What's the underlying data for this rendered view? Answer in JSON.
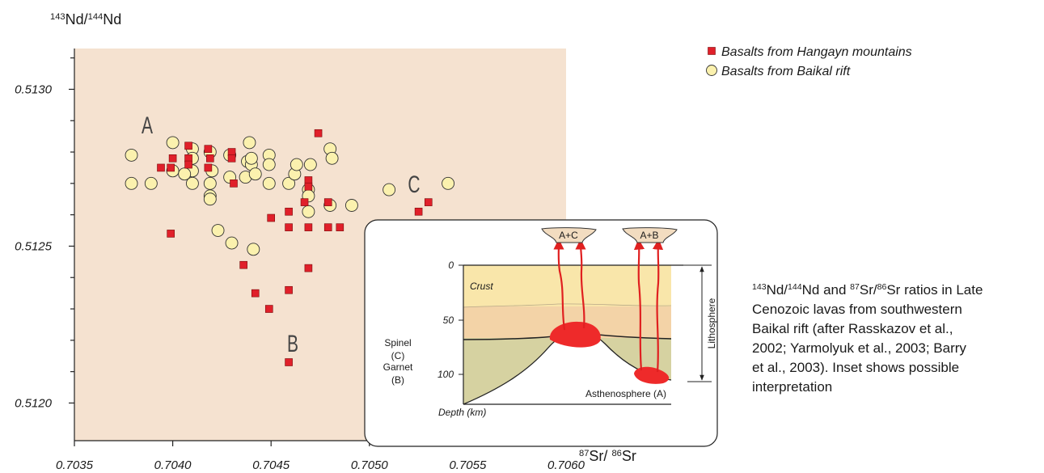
{
  "chart_data": {
    "type": "scatter",
    "ylabel": [
      {
        "text": "143",
        "sup": true
      },
      {
        "text": "Nd/"
      },
      {
        "text": "144",
        "sup": true
      },
      {
        "text": "Nd"
      }
    ],
    "xlabel": [
      {
        "text": "87",
        "sup": true
      },
      {
        "text": "Sr/ "
      },
      {
        "text": "86",
        "sup": true
      },
      {
        "text": "Sr"
      }
    ],
    "xlim": [
      0.7035,
      0.706
    ],
    "ylim": [
      0.51188,
      0.51313
    ],
    "xticks": [
      {
        "value": 0.7035,
        "label": "0.7035"
      },
      {
        "value": 0.704,
        "label": "0.7040"
      },
      {
        "value": 0.7045,
        "label": "0.7045"
      },
      {
        "value": 0.705,
        "label": "0.7050"
      },
      {
        "value": 0.7055,
        "label": "0.7055"
      },
      {
        "value": 0.706,
        "label": "0.7060"
      }
    ],
    "yticks": [
      {
        "value": 0.512,
        "label": "0.5120"
      },
      {
        "value": 0.5125,
        "label": "0.5125"
      },
      {
        "value": 0.513,
        "label": "0.5130"
      }
    ],
    "yminorticks": [
      0.5121,
      0.5122,
      0.5123,
      0.5124,
      0.5126,
      0.5127,
      0.5128,
      0.5129,
      0.5131
    ],
    "background": "#f5e2d0",
    "legend": "right",
    "annotations": [
      "A",
      "B",
      "C"
    ],
    "series": [
      {
        "name": "Basalts from Hangayn mountains",
        "color": "#e0202a",
        "marker": "square",
        "x": [
          0.70399,
          0.704,
          0.70394,
          0.70399,
          0.70408,
          0.70408,
          0.70408,
          0.70418,
          0.70419,
          0.70418,
          0.7043,
          0.7043,
          0.70431,
          0.70436,
          0.70442,
          0.70449,
          0.7045,
          0.70459,
          0.70459,
          0.70459,
          0.70459,
          0.70467,
          0.70469,
          0.70469,
          0.70469,
          0.70469,
          0.70474,
          0.70479,
          0.70485,
          0.70525,
          0.7053,
          0.70479
        ],
        "y": [
          0.51254,
          0.51278,
          0.51275,
          0.51275,
          0.51282,
          0.51278,
          0.51276,
          0.51281,
          0.51278,
          0.51275,
          0.5128,
          0.51278,
          0.5127,
          0.51244,
          0.51235,
          0.5123,
          0.51259,
          0.51261,
          0.51256,
          0.51236,
          0.51213,
          0.51264,
          0.51271,
          0.51269,
          0.51256,
          0.51243,
          0.51286,
          0.51256,
          0.51256,
          0.51261,
          0.51264,
          0.51264
        ]
      },
      {
        "name": "Basalts from Baikal rift",
        "color": "#fbf1ae",
        "marker": "circle",
        "x": [
          0.70379,
          0.70379,
          0.70389,
          0.704,
          0.704,
          0.7041,
          0.7041,
          0.7041,
          0.7041,
          0.70406,
          0.70419,
          0.7042,
          0.70419,
          0.70419,
          0.70419,
          0.70423,
          0.70429,
          0.70429,
          0.7043,
          0.70437,
          0.70438,
          0.7044,
          0.70441,
          0.70439,
          0.7044,
          0.70442,
          0.70449,
          0.70449,
          0.70449,
          0.70459,
          0.70462,
          0.70463,
          0.7047,
          0.70469,
          0.70469,
          0.70469,
          0.7048,
          0.70481,
          0.7048,
          0.70491,
          0.7051,
          0.7054
        ],
        "y": [
          0.51279,
          0.5127,
          0.5127,
          0.51283,
          0.51274,
          0.51281,
          0.51278,
          0.51274,
          0.5127,
          0.51273,
          0.5128,
          0.51274,
          0.5127,
          0.51266,
          0.51265,
          0.51255,
          0.51279,
          0.51272,
          0.51251,
          0.51272,
          0.51277,
          0.51276,
          0.51249,
          0.51283,
          0.51278,
          0.51273,
          0.51279,
          0.51276,
          0.5127,
          0.5127,
          0.51273,
          0.51276,
          0.51276,
          0.51268,
          0.51266,
          0.51261,
          0.51281,
          0.51278,
          0.51263,
          0.51263,
          0.51268,
          0.5127
        ]
      }
    ]
  },
  "inset": {
    "plumes": [
      "A+C",
      "A+B"
    ],
    "depth_ticks": [
      "0",
      "50",
      "100"
    ],
    "crust": "Crust",
    "spinel": [
      "Spinel",
      "(C)"
    ],
    "garnet": [
      "Garnet",
      "(B)"
    ],
    "asthenosphere": "Asthenosphere (A)",
    "depth": "Depth (km)",
    "lithosphere": "Lithosphere"
  },
  "caption": [
    [
      {
        "text": "143",
        "sup": true
      },
      {
        "text": "Nd/"
      },
      {
        "text": "144",
        "sup": true
      },
      {
        "text": "Nd and "
      },
      {
        "text": "87",
        "sup": true
      },
      {
        "text": "Sr/"
      },
      {
        "text": "86",
        "sup": true
      },
      {
        "text": "Sr ratios in Late"
      }
    ],
    [
      {
        "text": "Cenozoic lavas from southwestern"
      }
    ],
    [
      {
        "text": "Baikal rift (after Rasskazov et al.,"
      }
    ],
    [
      {
        "text": "2002; Yarmolyuk et al., 2003; Barry"
      }
    ],
    [
      {
        "text": "et al., 2003). Inset shows possible"
      }
    ],
    [
      {
        "text": "interpretation"
      }
    ]
  ]
}
